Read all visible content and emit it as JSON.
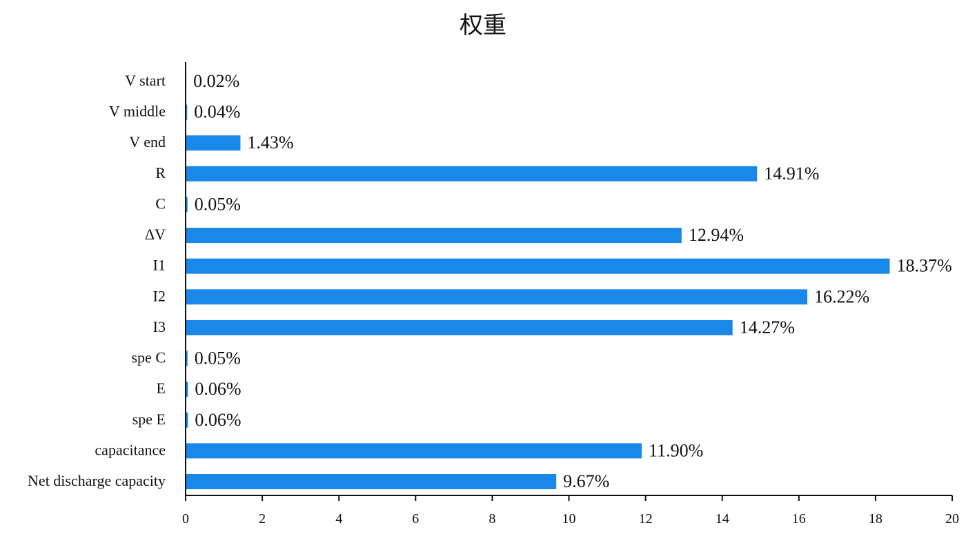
{
  "chart_data": {
    "type": "bar",
    "orientation": "horizontal",
    "title": "权重",
    "xlabel": "",
    "ylabel": "",
    "xlim": [
      0,
      20
    ],
    "x_ticks": [
      0,
      2,
      4,
      6,
      8,
      10,
      12,
      14,
      16,
      18,
      20
    ],
    "grid": false,
    "legend": "none",
    "bar_color": "#1a88e8",
    "categories": [
      "V start",
      "V middle",
      "V end",
      "R",
      "C",
      "ΔV",
      "I1",
      "I2",
      "I3",
      "spe C",
      "E",
      "spe E",
      "capacitance",
      "Net discharge capacity"
    ],
    "values": [
      0.02,
      0.04,
      1.43,
      14.91,
      0.05,
      12.94,
      18.37,
      16.22,
      14.27,
      0.05,
      0.06,
      0.06,
      11.9,
      9.67
    ],
    "data_labels": [
      "0.02%",
      "0.04%",
      "1.43%",
      "14.91%",
      "0.05%",
      "12.94%",
      "18.37%",
      "16.22%",
      "14.27%",
      "0.05%",
      "0.06%",
      "0.06%",
      "11.90%",
      "9.67%"
    ]
  }
}
